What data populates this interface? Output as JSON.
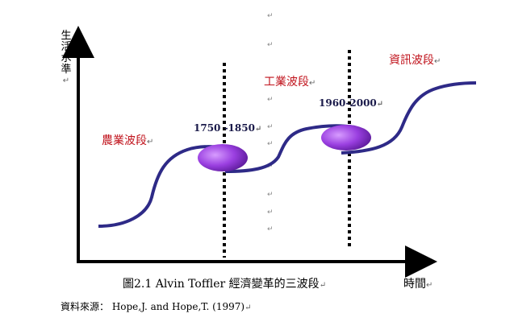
{
  "figure": {
    "y_axis_label": [
      "生",
      "活",
      "水",
      "準"
    ],
    "x_axis_label": "時間",
    "wave_labels": {
      "agricultural": "農業波段",
      "industrial": "工業波段",
      "information": "資訊波段"
    },
    "period_labels": {
      "first": "1750 -1850",
      "second": "1960-2000"
    },
    "caption": "圖2.1  Alvin  Toffler  經濟變革的三波段",
    "source": "資料來源：  Hope,J. and    Hope,T. (1997)",
    "paragraph_mark": "↵",
    "colors": {
      "curve": "#2e2a87",
      "label_red": "#c0121b",
      "ellipse_light": "#c77dff",
      "ellipse_dark": "#5b1a99"
    }
  }
}
